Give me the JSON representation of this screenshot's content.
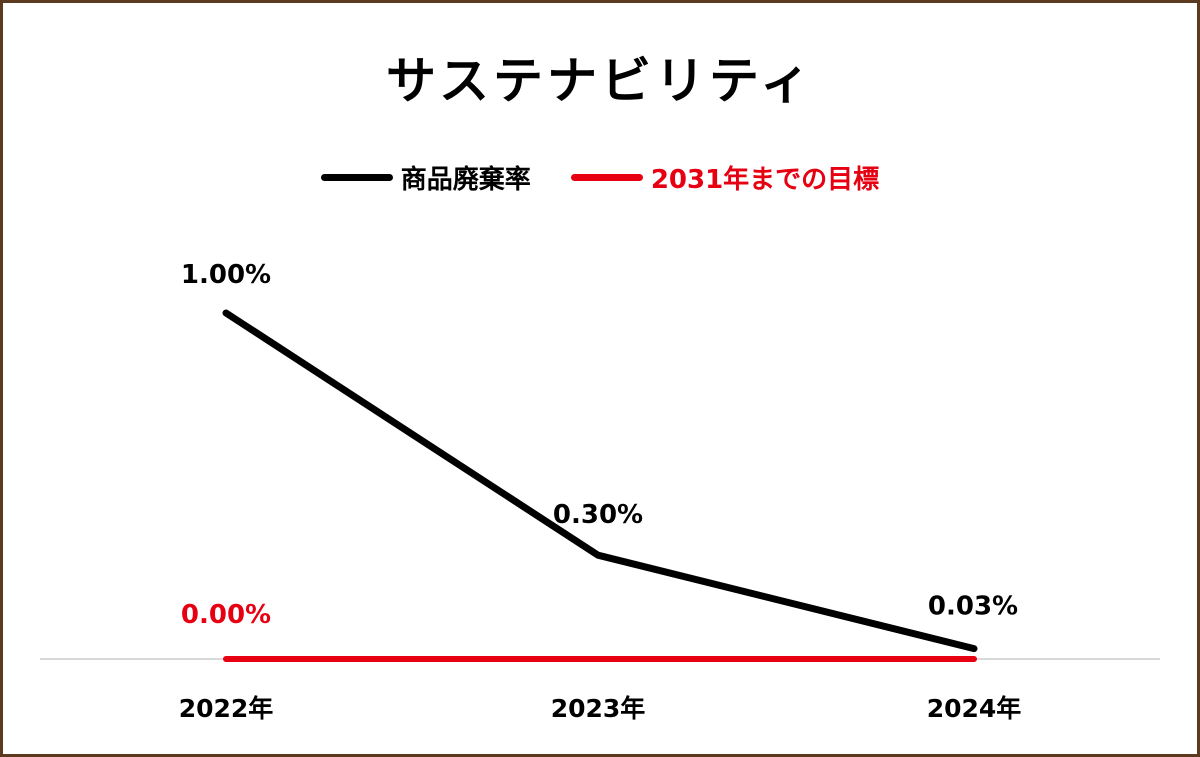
{
  "chart_data": {
    "type": "line",
    "title": "サステナビリティ",
    "categories": [
      "2022年",
      "2023年",
      "2024年"
    ],
    "ylim": [
      0,
      1.0
    ],
    "grid": false,
    "legend_position": "top",
    "series": [
      {
        "name": "商品廃棄率",
        "values": [
          1.0,
          0.3,
          0.03
        ],
        "labels": [
          "1.00%",
          "0.30%",
          "0.03%"
        ],
        "color": "#000000"
      },
      {
        "name": "2031年までの目標",
        "values": [
          0.0,
          0.0,
          0.0
        ],
        "labels": [
          "0.00%"
        ],
        "color": "#e60012"
      }
    ]
  },
  "colors": {
    "border": "#5b3a20",
    "axis": "#d9d9d9"
  }
}
